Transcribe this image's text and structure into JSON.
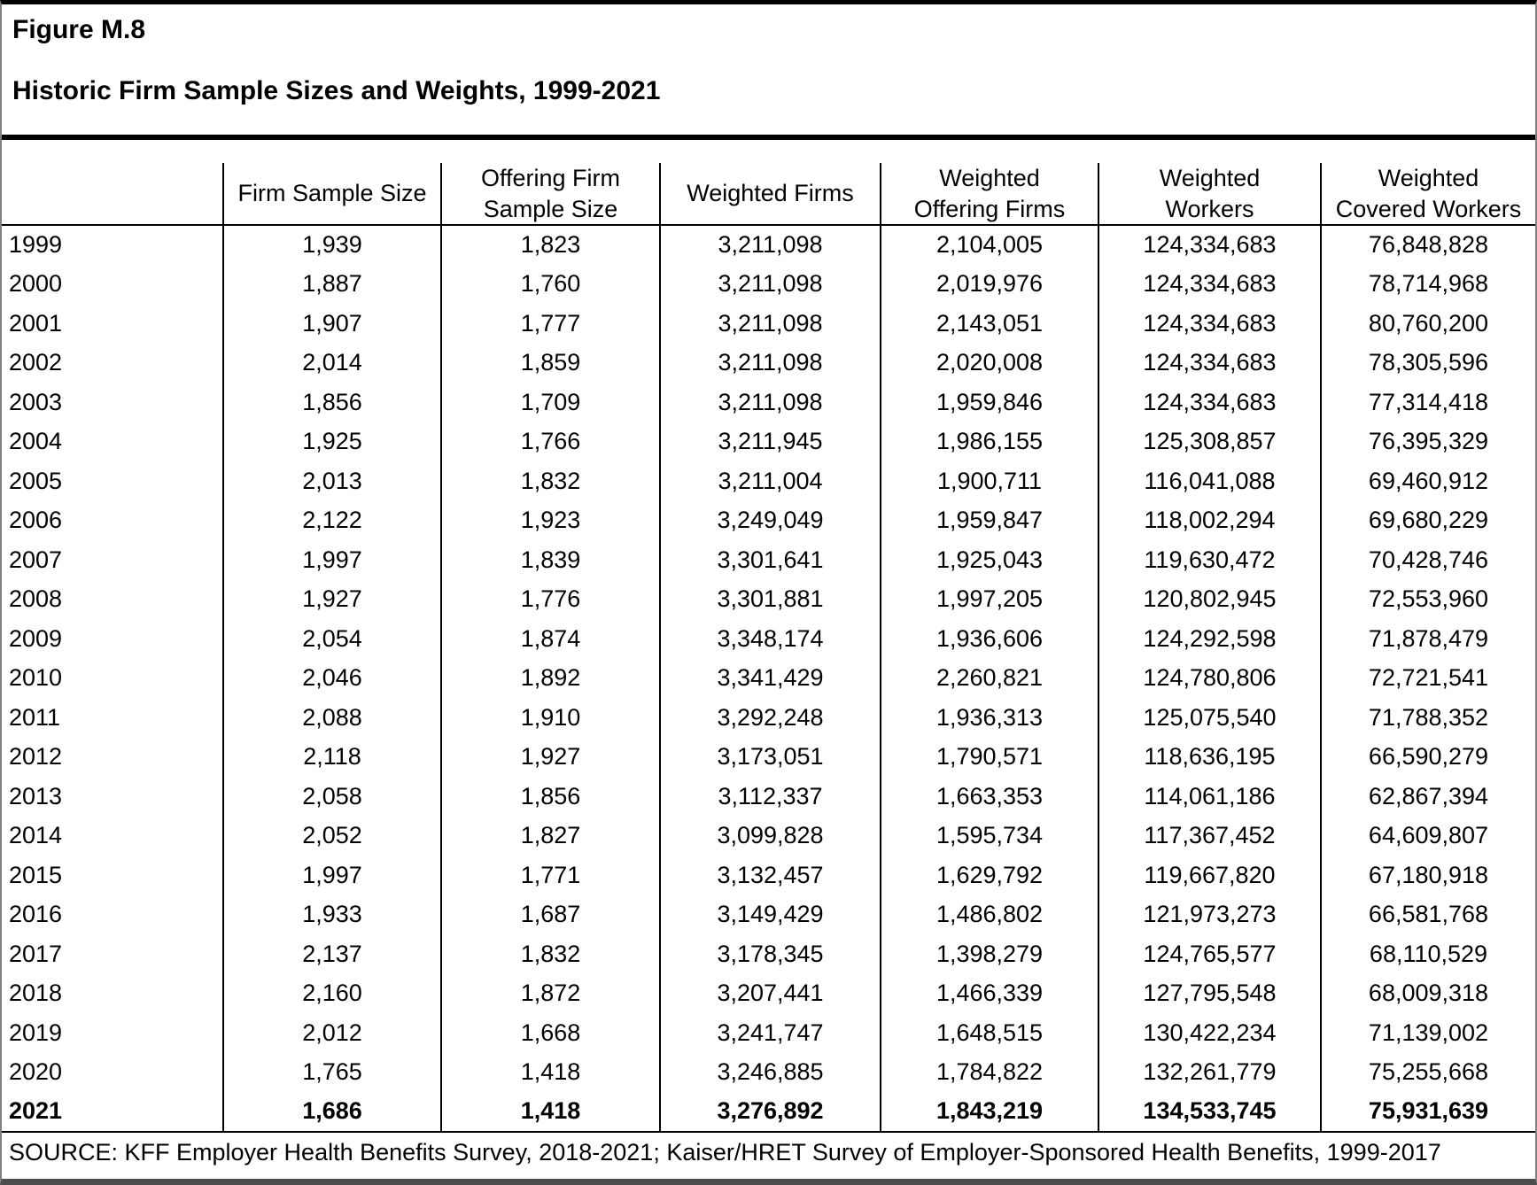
{
  "figure": {
    "label": "Figure M.8",
    "title": "Historic Firm Sample Sizes and Weights, 1999-2021"
  },
  "table": {
    "columns": [
      "",
      "Firm Sample Size",
      "Offering Firm\nSample Size",
      "Weighted Firms",
      "Weighted\nOffering Firms",
      "Weighted\nWorkers",
      "Weighted\nCovered Workers"
    ],
    "rows": [
      {
        "year": "1999",
        "values": [
          "1,939",
          "1,823",
          "3,211,098",
          "2,104,005",
          "124,334,683",
          "76,848,828"
        ],
        "bold": false
      },
      {
        "year": "2000",
        "values": [
          "1,887",
          "1,760",
          "3,211,098",
          "2,019,976",
          "124,334,683",
          "78,714,968"
        ],
        "bold": false
      },
      {
        "year": "2001",
        "values": [
          "1,907",
          "1,777",
          "3,211,098",
          "2,143,051",
          "124,334,683",
          "80,760,200"
        ],
        "bold": false
      },
      {
        "year": "2002",
        "values": [
          "2,014",
          "1,859",
          "3,211,098",
          "2,020,008",
          "124,334,683",
          "78,305,596"
        ],
        "bold": false
      },
      {
        "year": "2003",
        "values": [
          "1,856",
          "1,709",
          "3,211,098",
          "1,959,846",
          "124,334,683",
          "77,314,418"
        ],
        "bold": false
      },
      {
        "year": "2004",
        "values": [
          "1,925",
          "1,766",
          "3,211,945",
          "1,986,155",
          "125,308,857",
          "76,395,329"
        ],
        "bold": false
      },
      {
        "year": "2005",
        "values": [
          "2,013",
          "1,832",
          "3,211,004",
          "1,900,711",
          "116,041,088",
          "69,460,912"
        ],
        "bold": false
      },
      {
        "year": "2006",
        "values": [
          "2,122",
          "1,923",
          "3,249,049",
          "1,959,847",
          "118,002,294",
          "69,680,229"
        ],
        "bold": false
      },
      {
        "year": "2007",
        "values": [
          "1,997",
          "1,839",
          "3,301,641",
          "1,925,043",
          "119,630,472",
          "70,428,746"
        ],
        "bold": false
      },
      {
        "year": "2008",
        "values": [
          "1,927",
          "1,776",
          "3,301,881",
          "1,997,205",
          "120,802,945",
          "72,553,960"
        ],
        "bold": false
      },
      {
        "year": "2009",
        "values": [
          "2,054",
          "1,874",
          "3,348,174",
          "1,936,606",
          "124,292,598",
          "71,878,479"
        ],
        "bold": false
      },
      {
        "year": "2010",
        "values": [
          "2,046",
          "1,892",
          "3,341,429",
          "2,260,821",
          "124,780,806",
          "72,721,541"
        ],
        "bold": false
      },
      {
        "year": "2011",
        "values": [
          "2,088",
          "1,910",
          "3,292,248",
          "1,936,313",
          "125,075,540",
          "71,788,352"
        ],
        "bold": false
      },
      {
        "year": "2012",
        "values": [
          "2,118",
          "1,927",
          "3,173,051",
          "1,790,571",
          "118,636,195",
          "66,590,279"
        ],
        "bold": false
      },
      {
        "year": "2013",
        "values": [
          "2,058",
          "1,856",
          "3,112,337",
          "1,663,353",
          "114,061,186",
          "62,867,394"
        ],
        "bold": false
      },
      {
        "year": "2014",
        "values": [
          "2,052",
          "1,827",
          "3,099,828",
          "1,595,734",
          "117,367,452",
          "64,609,807"
        ],
        "bold": false
      },
      {
        "year": "2015",
        "values": [
          "1,997",
          "1,771",
          "3,132,457",
          "1,629,792",
          "119,667,820",
          "67,180,918"
        ],
        "bold": false
      },
      {
        "year": "2016",
        "values": [
          "1,933",
          "1,687",
          "3,149,429",
          "1,486,802",
          "121,973,273",
          "66,581,768"
        ],
        "bold": false
      },
      {
        "year": "2017",
        "values": [
          "2,137",
          "1,832",
          "3,178,345",
          "1,398,279",
          "124,765,577",
          "68,110,529"
        ],
        "bold": false
      },
      {
        "year": "2018",
        "values": [
          "2,160",
          "1,872",
          "3,207,441",
          "1,466,339",
          "127,795,548",
          "68,009,318"
        ],
        "bold": false
      },
      {
        "year": "2019",
        "values": [
          "2,012",
          "1,668",
          "3,241,747",
          "1,648,515",
          "130,422,234",
          "71,139,002"
        ],
        "bold": false
      },
      {
        "year": "2020",
        "values": [
          "1,765",
          "1,418",
          "3,246,885",
          "1,784,822",
          "132,261,779",
          "75,255,668"
        ],
        "bold": false
      },
      {
        "year": "2021",
        "values": [
          "1,686",
          "1,418",
          "3,276,892",
          "1,843,219",
          "134,533,745",
          "75,931,639"
        ],
        "bold": true
      }
    ]
  },
  "source": "SOURCE: KFF Employer Health Benefits Survey, 2018-2021; Kaiser/HRET Survey of Employer-Sponsored Health Benefits, 1999-2017"
}
